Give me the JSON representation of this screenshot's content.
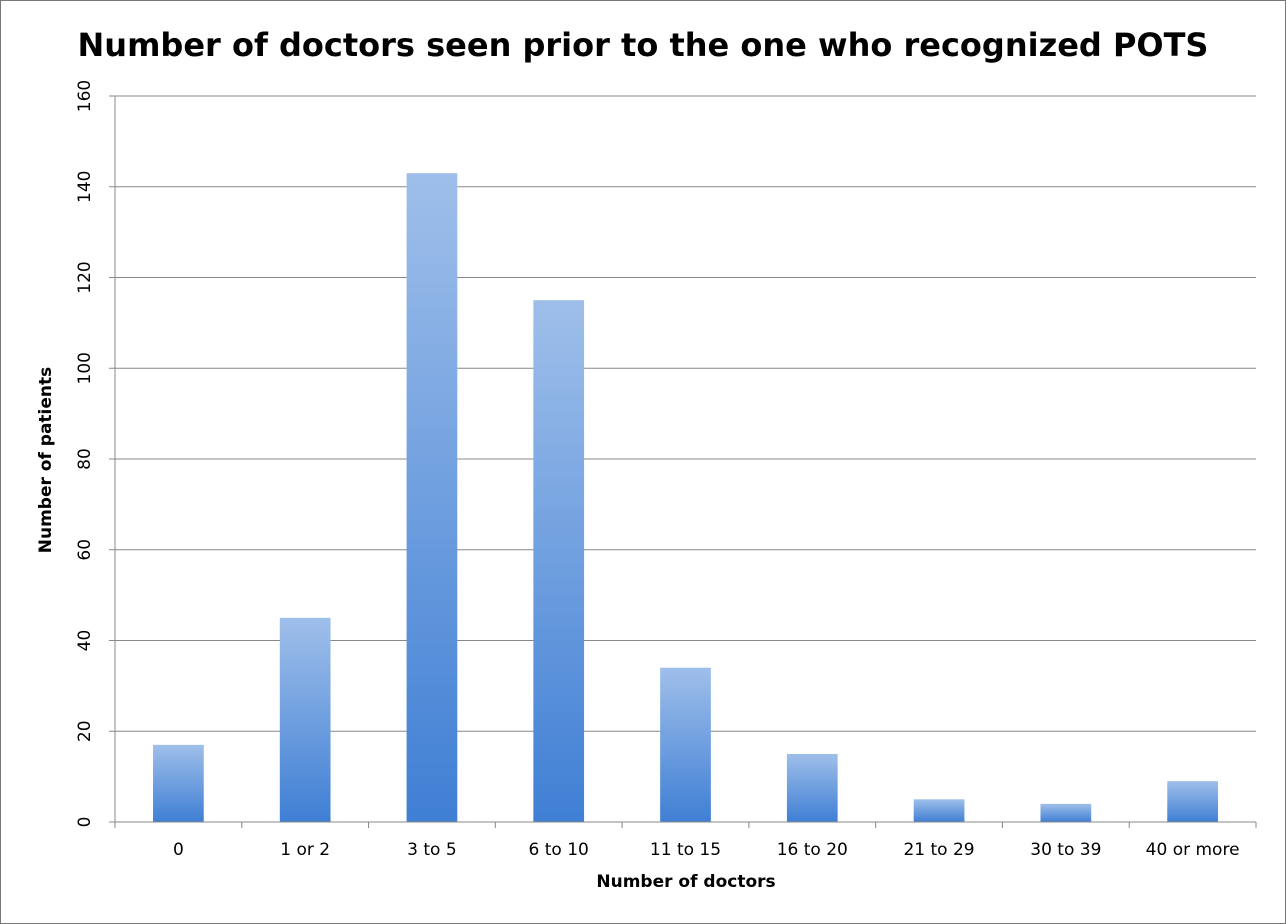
{
  "chart_data": {
    "type": "bar",
    "title": "Number of doctors seen prior to the one who recognized POTS",
    "x_label": "Number of doctors",
    "y_label": "Number of patients",
    "categories": [
      "0",
      "1 or 2",
      "3 to 5",
      "6 to 10",
      "11 to 15",
      "16 to 20",
      "21 to 29",
      "30 to 39",
      "40 or more"
    ],
    "values": [
      17,
      45,
      143,
      115,
      34,
      15,
      5,
      4,
      9
    ],
    "color": "#3f7fd4",
    "ylim": [
      0,
      160
    ],
    "yticks": [
      0,
      20,
      40,
      60,
      80,
      100,
      120,
      140,
      160
    ],
    "grid": true
  }
}
